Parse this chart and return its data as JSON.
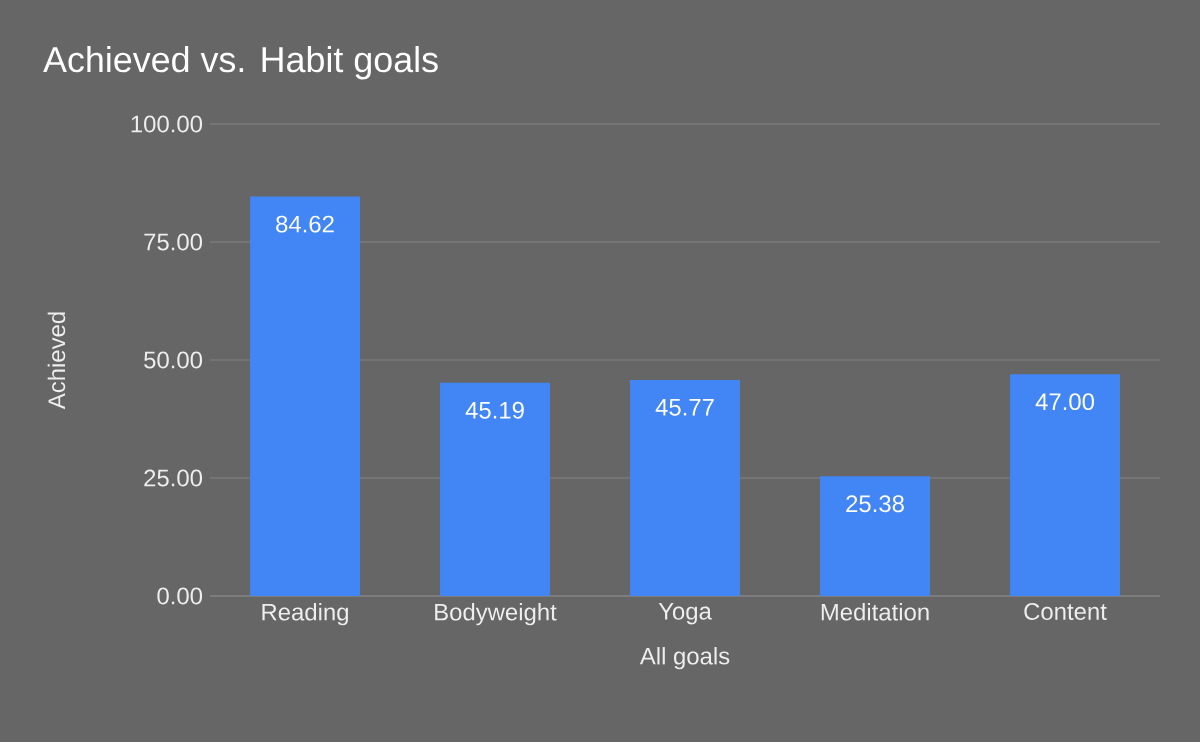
{
  "chart_data": {
    "type": "bar",
    "title": "Achieved vs. Habit goals",
    "xlabel": "All goals",
    "ylabel": "Achieved",
    "categories": [
      "Reading",
      "Bodyweight",
      "Yoga",
      "Meditation",
      "Content"
    ],
    "values": [
      84.62,
      45.19,
      45.77,
      25.38,
      47.0
    ],
    "value_labels": [
      "84.62",
      "45.19",
      "45.77",
      "25.38",
      "47.00"
    ],
    "color": "#4285f4",
    "ylim": [
      0,
      100
    ],
    "yticks": [
      {
        "value": 0,
        "label": "0.00"
      },
      {
        "value": 25,
        "label": "25.00"
      },
      {
        "value": 50,
        "label": "50.00"
      },
      {
        "value": 75,
        "label": "75.00"
      },
      {
        "value": 100,
        "label": "100.00"
      }
    ],
    "grid": "y"
  }
}
